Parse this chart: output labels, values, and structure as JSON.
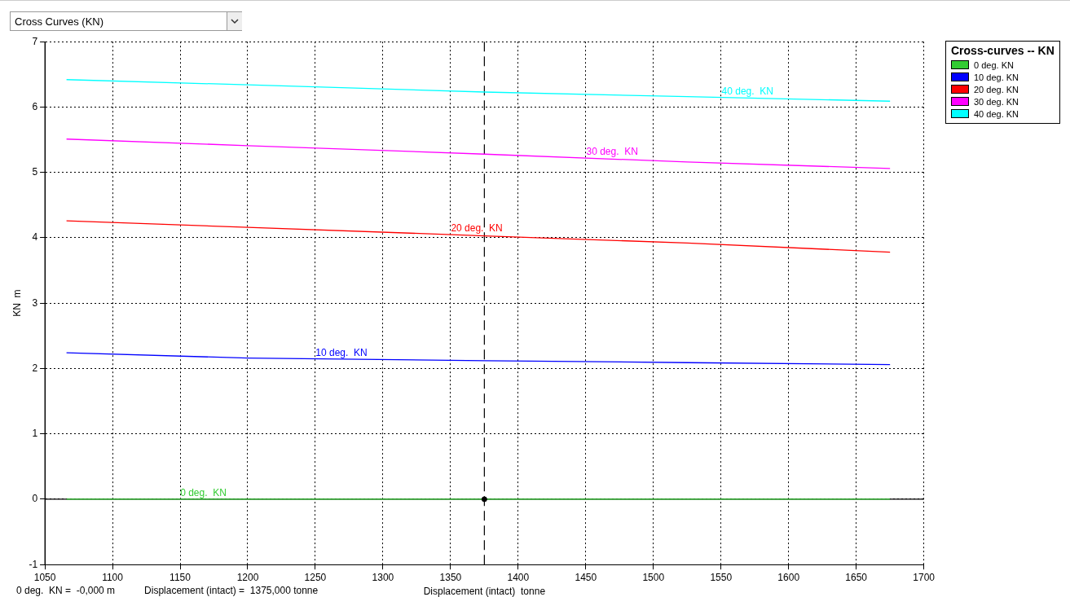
{
  "chart_data": {
    "type": "line",
    "title": "Cross Curves (KN)",
    "xlabel": "Displacement (intact)  tonne",
    "ylabel": "KN  m",
    "legend_title": "Cross-curves -- KN",
    "xlim": [
      1050,
      1700
    ],
    "xticks": [
      1050,
      1100,
      1150,
      1200,
      1250,
      1300,
      1350,
      1400,
      1450,
      1500,
      1550,
      1600,
      1650,
      1700
    ],
    "ylim": [
      -1,
      7
    ],
    "yticks": [
      -1,
      0,
      1,
      2,
      3,
      4,
      5,
      6,
      7
    ],
    "grid": true,
    "legend": "top right",
    "marker": "none",
    "line_style": "solid",
    "series": [
      {
        "name": "0 deg.  KN",
        "color": "#33cc33",
        "x": [
          1066,
          1375,
          1675
        ],
        "values": [
          0,
          0,
          0
        ]
      },
      {
        "name": "10 deg.  KN",
        "color": "#0000ff",
        "x": [
          1066,
          1200,
          1375,
          1525,
          1675
        ],
        "values": [
          2.24,
          2.16,
          2.12,
          2.09,
          2.06
        ]
      },
      {
        "name": "20 deg.  KN",
        "color": "#ff0000",
        "x": [
          1066,
          1200,
          1375,
          1525,
          1675
        ],
        "values": [
          4.26,
          4.16,
          4.03,
          3.92,
          3.78
        ]
      },
      {
        "name": "30 deg.  KN",
        "color": "#ff00ff",
        "x": [
          1066,
          1200,
          1375,
          1525,
          1675
        ],
        "values": [
          5.51,
          5.41,
          5.28,
          5.16,
          5.06
        ]
      },
      {
        "name": "40 deg.  KN",
        "color": "#00ffff",
        "x": [
          1066,
          1200,
          1375,
          1525,
          1675
        ],
        "values": [
          6.42,
          6.34,
          6.23,
          6.16,
          6.09
        ]
      },
      {
        "type": "scatter",
        "color": "#000000",
        "x": [
          1375
        ],
        "values": [
          0
        ],
        "marker": "circle"
      }
    ],
    "ref_lines": [
      {
        "axis": "x",
        "value": 1375,
        "color": "#000000",
        "line_style": "dashed"
      },
      {
        "axis": "y",
        "value": 0,
        "color": "#000000",
        "line_style": "solid"
      }
    ],
    "annotations": [
      "0 deg.  KN =  -0,000 m",
      "Displacement (intact) =  1375,000 tonne"
    ]
  }
}
